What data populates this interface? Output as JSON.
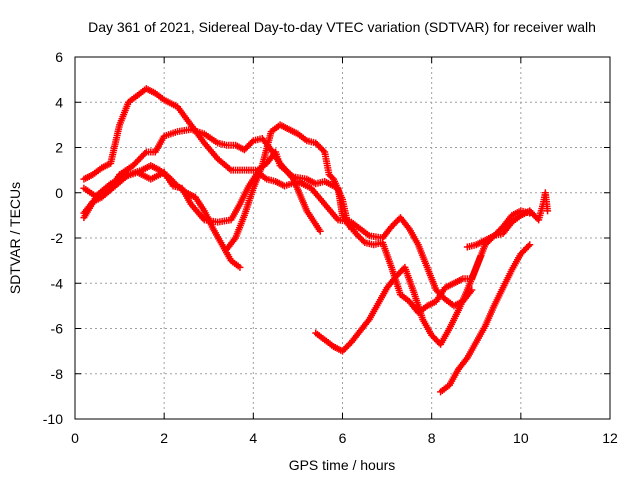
{
  "chart_data": {
    "type": "scatter",
    "title": "Day 361 of 2021, Sidereal Day-to-day VTEC variation (SDTVAR) for receiver walh",
    "xlabel": "GPS time / hours",
    "ylabel": "SDTVAR / TECUs",
    "xlim": [
      0,
      12
    ],
    "ylim": [
      -10,
      6
    ],
    "xticks": [
      0,
      2,
      4,
      6,
      8,
      10,
      12
    ],
    "yticks": [
      -10,
      -8,
      -6,
      -4,
      -2,
      0,
      2,
      4,
      6
    ],
    "grid": true,
    "marker": "+",
    "color": "#ff0000",
    "tracks": [
      [
        [
          0.2,
          0.6
        ],
        [
          0.4,
          0.8
        ],
        [
          0.6,
          1.1
        ],
        [
          0.8,
          1.3
        ],
        [
          1.0,
          3.0
        ],
        [
          1.2,
          4.0
        ],
        [
          1.4,
          4.3
        ],
        [
          1.6,
          4.6
        ],
        [
          1.8,
          4.4
        ],
        [
          2.0,
          4.1
        ],
        [
          2.3,
          3.8
        ],
        [
          2.6,
          3.0
        ],
        [
          2.9,
          2.2
        ],
        [
          3.2,
          1.5
        ],
        [
          3.5,
          1.0
        ],
        [
          3.8,
          1.0
        ],
        [
          4.1,
          1.0
        ],
        [
          4.3,
          1.3
        ],
        [
          4.5,
          1.8
        ],
        [
          4.6,
          1.2
        ],
        [
          4.9,
          0.7
        ],
        [
          5.2,
          0.6
        ],
        [
          5.4,
          0.4
        ],
        [
          5.6,
          0.5
        ],
        [
          5.9,
          0.2
        ],
        [
          6.0,
          -1.0
        ],
        [
          6.2,
          -1.6
        ]
      ],
      [
        [
          0.2,
          0.2
        ],
        [
          0.5,
          -0.2
        ],
        [
          0.8,
          0.2
        ],
        [
          1.0,
          0.8
        ],
        [
          1.3,
          1.2
        ],
        [
          1.6,
          1.8
        ],
        [
          1.8,
          1.8
        ],
        [
          2.0,
          2.5
        ],
        [
          2.3,
          2.7
        ],
        [
          2.6,
          2.8
        ],
        [
          2.9,
          2.6
        ],
        [
          3.2,
          2.2
        ],
        [
          3.4,
          2.1
        ],
        [
          3.6,
          2.1
        ],
        [
          3.8,
          1.9
        ],
        [
          4.0,
          2.3
        ],
        [
          4.2,
          2.4
        ],
        [
          4.4,
          1.9
        ],
        [
          4.6,
          1.3
        ],
        [
          4.9,
          0.6
        ],
        [
          5.2,
          -0.8
        ],
        [
          5.5,
          -1.7
        ]
      ],
      [
        [
          0.2,
          -0.9
        ],
        [
          0.4,
          -0.4
        ],
        [
          0.6,
          -0.2
        ],
        [
          0.9,
          0.3
        ],
        [
          1.2,
          0.8
        ],
        [
          1.5,
          1.0
        ],
        [
          1.7,
          1.2
        ],
        [
          1.9,
          1.0
        ],
        [
          2.1,
          0.7
        ],
        [
          2.3,
          0.3
        ],
        [
          2.5,
          0.0
        ],
        [
          2.7,
          -0.2
        ],
        [
          2.9,
          -0.8
        ],
        [
          3.1,
          -1.6
        ],
        [
          3.3,
          -2.3
        ],
        [
          3.5,
          -3.0
        ],
        [
          3.7,
          -3.3
        ]
      ],
      [
        [
          0.2,
          -1.1
        ],
        [
          0.5,
          -0.1
        ],
        [
          0.8,
          0.4
        ],
        [
          1.1,
          0.7
        ],
        [
          1.4,
          0.9
        ],
        [
          1.7,
          0.6
        ],
        [
          2.0,
          0.9
        ],
        [
          2.2,
          0.3
        ],
        [
          2.4,
          0.2
        ],
        [
          2.6,
          -0.5
        ],
        [
          2.9,
          -1.2
        ],
        [
          3.2,
          -1.3
        ],
        [
          3.5,
          -1.2
        ],
        [
          3.7,
          -0.5
        ],
        [
          3.9,
          0.3
        ],
        [
          4.1,
          0.9
        ],
        [
          4.3,
          0.6
        ],
        [
          4.5,
          0.5
        ],
        [
          4.7,
          0.3
        ],
        [
          5.0,
          0.5
        ],
        [
          5.3,
          0.2
        ],
        [
          5.6,
          -0.5
        ],
        [
          5.9,
          -1.2
        ],
        [
          6.2,
          -1.3
        ],
        [
          6.4,
          -1.6
        ],
        [
          6.6,
          -1.9
        ],
        [
          6.9,
          -2.0
        ],
        [
          7.1,
          -1.5
        ],
        [
          7.3,
          -1.1
        ],
        [
          7.5,
          -1.6
        ],
        [
          7.7,
          -2.3
        ],
        [
          7.9,
          -3.3
        ],
        [
          8.1,
          -4.3
        ],
        [
          8.3,
          -4.7
        ],
        [
          8.5,
          -5.0
        ],
        [
          8.7,
          -4.8
        ],
        [
          8.9,
          -4.3
        ]
      ],
      [
        [
          3.4,
          -2.5
        ],
        [
          3.6,
          -2.0
        ],
        [
          3.8,
          -1.0
        ],
        [
          4.0,
          0.2
        ],
        [
          4.2,
          1.2
        ],
        [
          4.4,
          2.7
        ],
        [
          4.6,
          3.0
        ],
        [
          4.8,
          2.8
        ],
        [
          5.0,
          2.6
        ],
        [
          5.2,
          2.3
        ],
        [
          5.4,
          2.2
        ],
        [
          5.6,
          1.8
        ],
        [
          5.7,
          0.8
        ],
        [
          5.8,
          0.6
        ],
        [
          6.0,
          -0.3
        ],
        [
          6.1,
          -1.2
        ],
        [
          6.3,
          -1.8
        ],
        [
          6.5,
          -2.2
        ],
        [
          6.7,
          -2.3
        ],
        [
          6.9,
          -2.2
        ],
        [
          7.1,
          -3.3
        ],
        [
          7.3,
          -4.5
        ],
        [
          7.5,
          -4.8
        ],
        [
          7.7,
          -5.3
        ],
        [
          7.9,
          -5.0
        ],
        [
          8.1,
          -4.8
        ],
        [
          8.3,
          -4.2
        ],
        [
          8.5,
          -4.0
        ],
        [
          8.7,
          -3.8
        ],
        [
          8.9,
          -3.8
        ],
        [
          9.1,
          -2.8
        ]
      ],
      [
        [
          5.4,
          -6.2
        ],
        [
          5.6,
          -6.5
        ],
        [
          5.8,
          -6.8
        ],
        [
          6.0,
          -7.0
        ],
        [
          6.2,
          -6.6
        ],
        [
          6.4,
          -6.1
        ],
        [
          6.6,
          -5.6
        ],
        [
          6.8,
          -4.9
        ],
        [
          7.0,
          -4.2
        ],
        [
          7.2,
          -3.7
        ],
        [
          7.4,
          -3.3
        ],
        [
          7.6,
          -4.4
        ],
        [
          7.8,
          -5.6
        ],
        [
          8.0,
          -6.3
        ],
        [
          8.2,
          -6.7
        ],
        [
          8.4,
          -6.0
        ],
        [
          8.6,
          -5.2
        ],
        [
          8.8,
          -4.3
        ],
        [
          9.0,
          -3.3
        ],
        [
          9.2,
          -2.3
        ],
        [
          9.4,
          -1.9
        ],
        [
          9.6,
          -1.5
        ],
        [
          9.8,
          -1.0
        ],
        [
          10.0,
          -0.8
        ],
        [
          10.2,
          -0.9
        ]
      ],
      [
        [
          8.2,
          -8.8
        ],
        [
          8.4,
          -8.5
        ],
        [
          8.6,
          -7.8
        ],
        [
          8.8,
          -7.3
        ],
        [
          9.0,
          -6.6
        ],
        [
          9.2,
          -5.9
        ],
        [
          9.4,
          -5.0
        ],
        [
          9.6,
          -4.2
        ],
        [
          9.8,
          -3.4
        ],
        [
          10.0,
          -2.7
        ],
        [
          10.2,
          -2.3
        ]
      ],
      [
        [
          8.8,
          -2.4
        ],
        [
          9.0,
          -2.3
        ],
        [
          9.2,
          -2.1
        ],
        [
          9.4,
          -1.9
        ],
        [
          9.6,
          -1.8
        ],
        [
          9.8,
          -1.3
        ],
        [
          10.0,
          -1.0
        ],
        [
          10.2,
          -0.8
        ],
        [
          10.4,
          -1.2
        ],
        [
          10.5,
          -0.5
        ],
        [
          10.55,
          0.0
        ],
        [
          10.6,
          -0.8
        ]
      ]
    ]
  }
}
